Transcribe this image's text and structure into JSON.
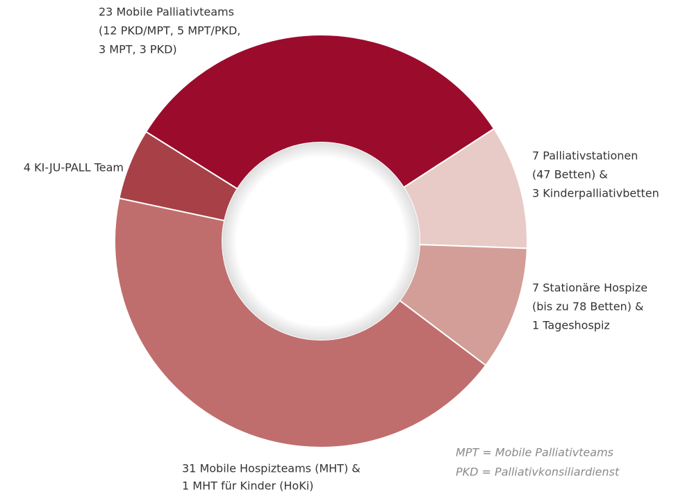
{
  "chart_data": {
    "type": "donut",
    "categories": [
      [
        "23 Mobile Palliativteams",
        "(12 PKD/MPT, 5 MPT/PKD,",
        "3 MPT, 3 PKD)"
      ],
      [
        "7 Palliativstationen",
        "(47 Betten) &",
        "3 Kinderpalliativbetten"
      ],
      [
        "7 Stationäre Hospize",
        "(bis zu 78 Betten) &",
        "1 Tageshospiz"
      ],
      [
        "31 Mobile Hospizteams (MHT) &",
        "1 MHT für Kinder (HoKi)"
      ],
      [
        "4 KI-JU-PALL Team"
      ]
    ],
    "values": [
      23,
      7,
      7,
      31,
      4
    ],
    "colors": [
      "#9b0c2c",
      "#e8cbc6",
      "#d39e98",
      "#bf6e6d",
      "#a84048"
    ],
    "notes": [
      "MPT = Mobile Palliativteams",
      "PKD = Palliativkonsiliardienst"
    ]
  }
}
